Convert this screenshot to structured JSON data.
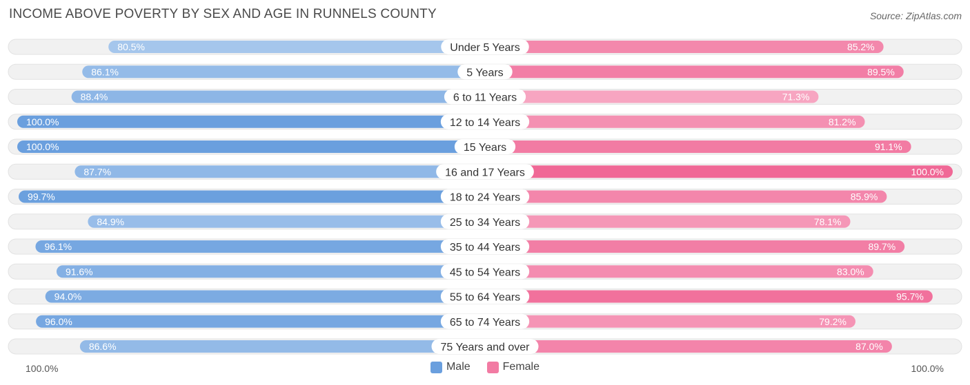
{
  "header": {
    "title": "INCOME ABOVE POVERTY BY SEX AND AGE IN RUNNELS COUNTY",
    "source": "Source: ZipAtlas.com"
  },
  "colors": {
    "male_light": "#a7c7ec",
    "male_dark": "#6a9fde",
    "female_light": "#f7a8c3",
    "female_dark": "#f06896",
    "track": "#f1f1f1"
  },
  "legend": {
    "male_label": "Male",
    "female_label": "Female",
    "male_color": "#6a9fde",
    "female_color": "#f27ba3"
  },
  "axis": {
    "left_label": "100.0%",
    "right_label": "100.0%"
  },
  "chart_data": {
    "type": "bar",
    "orientation": "horizontal-diverging",
    "title": "INCOME ABOVE POVERTY BY SEX AND AGE IN RUNNELS COUNTY",
    "xlim": [
      0,
      100
    ],
    "categories": [
      "Under 5 Years",
      "5 Years",
      "6 to 11 Years",
      "12 to 14 Years",
      "15 Years",
      "16 and 17 Years",
      "18 to 24 Years",
      "25 to 34 Years",
      "35 to 44 Years",
      "45 to 54 Years",
      "55 to 64 Years",
      "65 to 74 Years",
      "75 Years and over"
    ],
    "series": [
      {
        "name": "Male",
        "values": [
          80.5,
          86.1,
          88.4,
          100.0,
          100.0,
          87.7,
          99.7,
          84.9,
          96.1,
          91.6,
          94.0,
          96.0,
          86.6
        ],
        "labels": [
          "80.5%",
          "86.1%",
          "88.4%",
          "100.0%",
          "100.0%",
          "87.7%",
          "99.7%",
          "84.9%",
          "96.1%",
          "91.6%",
          "94.0%",
          "96.0%",
          "86.6%"
        ]
      },
      {
        "name": "Female",
        "values": [
          85.2,
          89.5,
          71.3,
          81.2,
          91.1,
          100.0,
          85.9,
          78.1,
          89.7,
          83.0,
          95.7,
          79.2,
          87.0
        ],
        "labels": [
          "85.2%",
          "89.5%",
          "71.3%",
          "81.2%",
          "91.1%",
          "100.0%",
          "85.9%",
          "78.1%",
          "89.7%",
          "83.0%",
          "95.7%",
          "79.2%",
          "87.0%"
        ]
      }
    ]
  }
}
